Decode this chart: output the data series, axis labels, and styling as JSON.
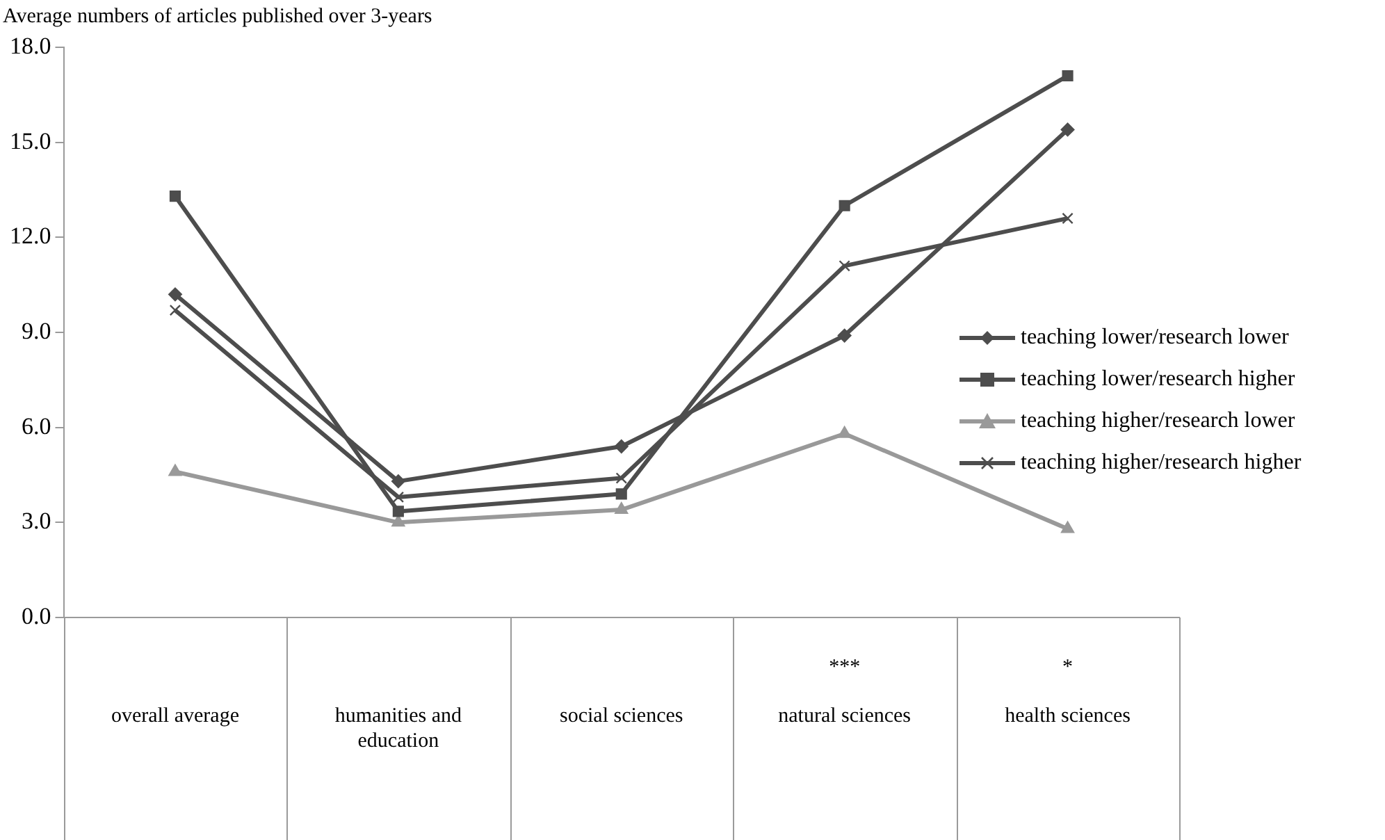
{
  "chart_data": {
    "type": "line",
    "ylabel": "Average numbers of articles published over 3-years",
    "categories": [
      "overall average",
      "humanities and education",
      "social sciences",
      "natural sciences",
      "health sciences"
    ],
    "series": [
      {
        "name": "teaching lower/research lower",
        "color": "#4d4d4d",
        "marker": "diamond",
        "values": [
          10.2,
          4.3,
          5.4,
          8.9,
          15.4
        ]
      },
      {
        "name": "teaching lower/research higher",
        "color": "#4d4d4d",
        "marker": "square",
        "values": [
          13.3,
          3.35,
          3.9,
          13.0,
          17.1
        ]
      },
      {
        "name": "teaching higher/research lower",
        "color": "#999999",
        "marker": "triangle",
        "values": [
          4.6,
          3.0,
          3.4,
          5.8,
          2.8
        ]
      },
      {
        "name": "teaching higher/research higher",
        "color": "#4d4d4d",
        "marker": "cross",
        "values": [
          9.7,
          3.8,
          4.4,
          11.1,
          12.6
        ]
      }
    ],
    "ylim": [
      0,
      18
    ],
    "yticks": [
      {
        "value": 0,
        "label": "0.0"
      },
      {
        "value": 3,
        "label": "3.0"
      },
      {
        "value": 6,
        "label": "6.0"
      },
      {
        "value": 9,
        "label": "9.0"
      },
      {
        "value": 12,
        "label": "12.0"
      },
      {
        "value": 15,
        "label": "15.0"
      },
      {
        "value": 18,
        "label": "18.0"
      }
    ],
    "grid": false,
    "legend": "right",
    "line_style": "solid",
    "annotations": [
      "***",
      "*"
    ]
  }
}
